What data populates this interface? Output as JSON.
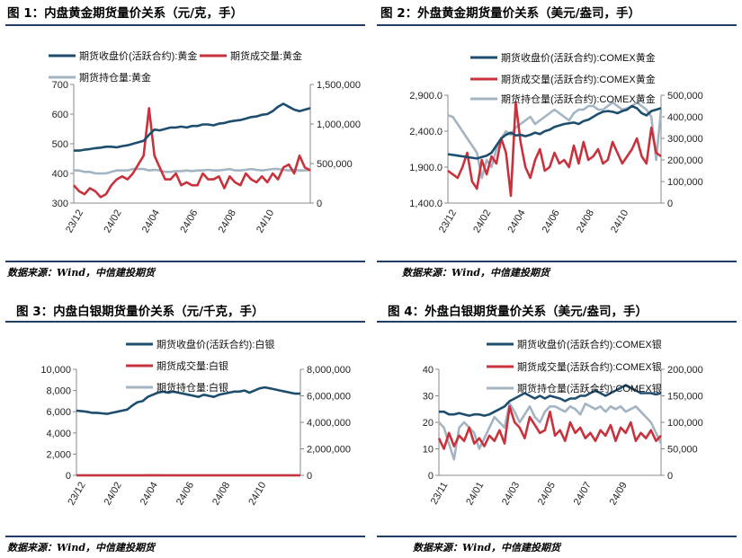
{
  "source_text": "数据来源：Wind，中信建投期货",
  "charts": [
    {
      "title": "图 1：内盘黄金期货量价关系（元/克，手）",
      "chart_data": {
        "type": "line",
        "x_ticks": [
          "23/12",
          "24/02",
          "24/04",
          "24/06",
          "24/08",
          "24/10"
        ],
        "y_left": {
          "min": 300,
          "max": 700,
          "ticks": [
            "300",
            "400",
            "500",
            "600",
            "700"
          ],
          "tick_values": [
            300,
            400,
            500,
            600,
            700
          ]
        },
        "y_right": {
          "min": 0,
          "max": 1500000,
          "ticks": [
            "0",
            "500,000",
            "1,000,000",
            "1,500,000"
          ],
          "tick_values": [
            0,
            500000,
            1000000,
            1500000
          ]
        },
        "legend": [
          "期货收盘价(活跃合约):黄金",
          "期货成交量:黄金",
          "期货持仓量:黄金"
        ],
        "series": [
          {
            "name": "期货收盘价(活跃合约):黄金",
            "axis": "left",
            "color": "#1d4e6e",
            "values": [
              477,
              477,
              480,
              482,
              485,
              487,
              490,
              490,
              488,
              492,
              495,
              500,
              505,
              510,
              530,
              548,
              545,
              550,
              555,
              555,
              558,
              555,
              560,
              560,
              565,
              565,
              562,
              568,
              570,
              575,
              578,
              580,
              585,
              590,
              592,
              598,
              600,
              610,
              625,
              635,
              625,
              615,
              610,
              615,
              620
            ]
          },
          {
            "name": "期货成交量:黄金",
            "axis": "right",
            "color": "#c8323c",
            "values": [
              360,
              340,
              330,
              350,
              340,
              320,
              330,
              360,
              380,
              390,
              380,
              400,
              430,
              460,
              620,
              460,
              420,
              380,
              380,
              400,
              360,
              370,
              360,
              360,
              400,
              380,
              380,
              390,
              350,
              390,
              370,
              360,
              400,
              380,
              370,
              390,
              370,
              400,
              380,
              420,
              430,
              400,
              460,
              420,
              410
            ]
          },
          {
            "name": "期货持仓量:黄金",
            "axis": "right",
            "color": "#a3b4c3",
            "values": [
              410,
              410,
              405,
              405,
              400,
              400,
              400,
              405,
              410,
              410,
              410,
              415,
              415,
              415,
              410,
              412,
              410,
              405,
              405,
              408,
              408,
              410,
              408,
              410,
              410,
              412,
              410,
              410,
              412,
              415,
              410,
              410,
              412,
              415,
              412,
              410,
              412,
              415,
              415,
              412,
              410,
              412,
              410,
              410,
              412
            ]
          }
        ]
      }
    },
    {
      "title": "图 2：外盘黄金期货量价关系（美元/盎司，手）",
      "chart_data": {
        "type": "line",
        "x_ticks": [
          "23/12",
          "24/02",
          "24/04",
          "24/06",
          "24/08",
          "24/10"
        ],
        "y_left": {
          "min": 1400,
          "max": 2900,
          "ticks": [
            "1,400.0",
            "1,900.0",
            "2,400.0",
            "2,900.0"
          ],
          "tick_values": [
            1400,
            1900,
            2400,
            2900
          ]
        },
        "y_right": {
          "min": 0,
          "max": 500000,
          "ticks": [
            "0",
            "100,000",
            "200,000",
            "300,000",
            "400,000",
            "500,000"
          ],
          "tick_values": [
            0,
            100000,
            200000,
            300000,
            400000,
            500000
          ]
        },
        "legend": [
          "期货收盘价(活跃合约):COMEX黄金",
          "期货成交量(活跃合约):COMEX黄金",
          "期货持仓量(活跃合约):COMEX黄金"
        ],
        "series": [
          {
            "name": "期货收盘价(活跃合约):COMEX黄金",
            "axis": "left",
            "color": "#1d4e6e",
            "values": [
              2080,
              2070,
              2060,
              2050,
              2040,
              2030,
              2020,
              2040,
              2060,
              2100,
              2200,
              2300,
              2350,
              2380,
              2340,
              2350,
              2330,
              2350,
              2380,
              2360,
              2400,
              2420,
              2460,
              2480,
              2500,
              2510,
              2520,
              2500,
              2540,
              2560,
              2600,
              2640,
              2670,
              2680,
              2670,
              2650,
              2680,
              2700,
              2750,
              2720,
              2650,
              2620,
              2680,
              2700,
              2720
            ]
          },
          {
            "name": "期货成交量(活跃合约):COMEX黄金",
            "axis": "right",
            "color": "#c8323c",
            "values": [
              1850,
              1800,
              1750,
              1900,
              2100,
              1700,
              1600,
              2000,
              1800,
              2050,
              1950,
              2300,
              2100,
              1500,
              2800,
              2250,
              1900,
              1750,
              2000,
              2150,
              1850,
              1900,
              2100,
              1950,
              2000,
              1900,
              2200,
              1950,
              2250,
              2000,
              2050,
              2150,
              1950,
              2000,
              2250,
              2100,
              1950,
              2050,
              2150,
              2300,
              2050,
              1950,
              2450,
              2100,
              2050
            ]
          },
          {
            "name": "期货持仓量(活跃合约):COMEX黄金",
            "axis": "right",
            "color": "#a3b4c3",
            "values": [
              2620,
              2600,
              2500,
              2400,
              2300,
              2200,
              2100,
              1750,
              2000,
              1900,
              2150,
              2300,
              2400,
              2350,
              2450,
              2500,
              2550,
              2600,
              2500,
              2550,
              2600,
              2650,
              2700,
              2650,
              2600,
              2550,
              2650,
              2700,
              2700,
              2750,
              2750,
              2700,
              2700,
              2750,
              2800,
              2750,
              2700,
              2720,
              2750,
              2800,
              2750,
              2700,
              2600,
              2000,
              2700
            ]
          }
        ]
      }
    },
    {
      "title": "图 3：内盘白银期货量价关系（元/千克，手）",
      "chart_data": {
        "type": "line",
        "x_ticks": [
          "23/12",
          "24/02",
          "24/04",
          "24/06",
          "24/08",
          "24/10"
        ],
        "y_left": {
          "min": 0,
          "max": 10000,
          "ticks": [
            "0",
            "2,000",
            "4,000",
            "6,000",
            "8,000",
            "10,000"
          ],
          "tick_values": [
            0,
            2000,
            4000,
            6000,
            8000,
            10000
          ]
        },
        "y_right": {
          "min": 0,
          "max": 8000000,
          "ticks": [
            "0",
            "2,000,000",
            "4,000,000",
            "6,000,000",
            "8,000,000"
          ],
          "tick_values": [
            0,
            2000000,
            4000000,
            6000000,
            8000000
          ]
        },
        "legend": [
          "期货收盘价(活跃合约):白银",
          "期货成交量:白银",
          "期货持仓量:白银"
        ],
        "series": [
          {
            "name": "期货收盘价(活跃合约):白银",
            "axis": "left",
            "color": "#1d4e6e",
            "values": [
              6100,
              6050,
              6000,
              5900,
              5900,
              5850,
              5800,
              5900,
              6000,
              6100,
              6200,
              6600,
              6900,
              7000,
              7400,
              7600,
              7800,
              7900,
              7800,
              7900,
              7800,
              7700,
              7600,
              7500,
              7400,
              7600,
              7500,
              7400,
              7600,
              7700,
              7800,
              7900,
              7900,
              8000,
              7800,
              8000,
              8200,
              8300,
              8200,
              8100,
              8000,
              7900,
              7800,
              7700,
              7700
            ]
          },
          {
            "name": "期货成交量:白银",
            "axis": "right",
            "color": "#c8323c",
            "values": [
              1500,
              1400,
              1300,
              1200,
              1200,
              1100,
              1100,
              1200,
              1200,
              1300,
              1300,
              1500,
              1800,
              2500,
              6000,
              3500,
              3800,
              3000,
              2600,
              3200,
              2200,
              2300,
              2000,
              2400,
              1800,
              1900,
              2100,
              1600,
              1800,
              1500,
              1500,
              1700,
              1600,
              1500,
              1800,
              1700,
              1900,
              2000,
              2100,
              1900,
              1600,
              1700,
              2100,
              1700,
              1800
            ]
          },
          {
            "name": "期货持仓量:白银",
            "axis": "right",
            "color": "#a3b4c3",
            "values": [
              1200,
              1200,
              1150,
              1100,
              1100,
              1050,
              1050,
              1100,
              1100,
              1150,
              1150,
              1200,
              1250,
              1300,
              1300,
              1250,
              1200,
              1200,
              1150,
              1150,
              1100,
              1100,
              1100,
              1100,
              1050,
              1050,
              1050,
              1050,
              1050,
              1000,
              1050,
              1050,
              1050,
              1050,
              1000,
              1050,
              1050,
              1050,
              1100,
              1100,
              1050,
              1050,
              1000,
              1000,
              1000
            ]
          }
        ]
      }
    },
    {
      "title": "图 4：外盘白银期货量价关系（美元/盎司，手）",
      "chart_data": {
        "type": "line",
        "x_ticks": [
          "23/11",
          "24/01",
          "24/03",
          "24/05",
          "24/07",
          "24/09"
        ],
        "y_left": {
          "min": 0,
          "max": 40,
          "ticks": [
            "0",
            "10",
            "20",
            "30",
            "40"
          ],
          "tick_values": [
            0,
            10,
            20,
            30,
            40
          ]
        },
        "y_right": {
          "min": 0,
          "max": 200000,
          "ticks": [
            "0",
            "50,000",
            "100,000",
            "150,000",
            "200,000"
          ],
          "tick_values": [
            0,
            50000,
            100000,
            150000,
            200000
          ]
        },
        "legend": [
          "期货收盘价(活跃合约):COMEX银",
          "期货成交量(活跃合约):COMEX银",
          "期货持仓量(活跃合约):COMEX银"
        ],
        "series": [
          {
            "name": "期货收盘价(活跃合约):COMEX银",
            "axis": "left",
            "color": "#1d4e6e",
            "values": [
              24,
              24,
              23,
              23,
              23.5,
              23,
              22.5,
              23,
              23,
              22.5,
              23,
              24,
              25,
              26,
              28,
              29,
              30,
              31,
              30,
              29,
              30,
              29,
              30,
              29.5,
              29,
              28,
              29,
              29,
              30,
              30,
              31,
              32,
              31,
              30,
              31,
              32,
              33,
              34,
              33,
              32,
              31,
              31,
              31,
              30.5,
              31
            ]
          },
          {
            "name": "期货成交量(活跃合约):COMEX银",
            "axis": "right",
            "color": "#c8323c",
            "values": [
              14,
              10,
              16,
              11,
              15,
              13,
              18,
              12,
              14,
              11,
              15,
              13,
              17,
              12,
              26,
              20,
              18,
              14,
              22,
              19,
              16,
              17,
              24,
              15,
              17,
              13,
              20,
              16,
              18,
              14,
              16,
              13,
              17,
              15,
              19,
              13,
              18,
              16,
              20,
              13,
              16,
              14,
              17,
              13,
              15
            ]
          },
          {
            "name": "期货持仓量(活跃合约):COMEX银",
            "axis": "right",
            "color": "#a3b4c3",
            "values": [
              20,
              18,
              12,
              6,
              18,
              20,
              18,
              16,
              10,
              14,
              18,
              22,
              20,
              18,
              27,
              24,
              20,
              23,
              26,
              22,
              20,
              24,
              26,
              26,
              25,
              24,
              26,
              25,
              23,
              27,
              26,
              25,
              26,
              24,
              26,
              25,
              26,
              24,
              25,
              26,
              24,
              22,
              20,
              16,
              12
            ]
          }
        ]
      }
    }
  ]
}
